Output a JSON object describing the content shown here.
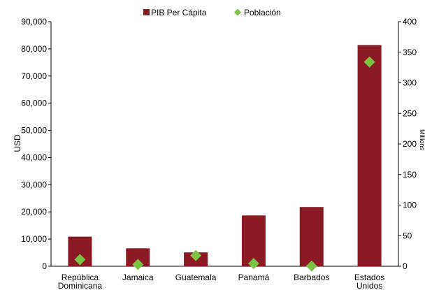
{
  "chart_data": {
    "type": "bar",
    "categories": [
      [
        "República",
        "Dominicana"
      ],
      [
        "Jamaica"
      ],
      [
        "Guatemala"
      ],
      [
        "Panamá"
      ],
      [
        "Barbados"
      ],
      [
        "Estados",
        "Unidos"
      ]
    ],
    "series": [
      {
        "name": "PIB Per Cápita",
        "kind": "bar",
        "axis": "left",
        "color": "#8b1a24",
        "values": [
          10900,
          6600,
          5100,
          18700,
          21800,
          81400
        ]
      },
      {
        "name": "Población",
        "kind": "marker",
        "marker": "diamond",
        "axis": "right",
        "color": "#7dc242",
        "values": [
          10.9,
          2.8,
          17.6,
          4.4,
          0.3,
          334
        ]
      }
    ],
    "y_left": {
      "label": "USD",
      "min": 0,
      "max": 90000,
      "step": 10000,
      "tick_labels": [
        "0",
        "10,000",
        "20,000",
        "30,000",
        "40,000",
        "50,000",
        "60,000",
        "70,000",
        "80,000",
        "90,000"
      ]
    },
    "y_right": {
      "label": "Millions",
      "min": 0,
      "max": 400,
      "step": 50,
      "tick_labels": [
        "0",
        "50",
        "100",
        "150",
        "200",
        "250",
        "300",
        "350",
        "400"
      ]
    },
    "legend_position": "top-center",
    "grid": false
  }
}
